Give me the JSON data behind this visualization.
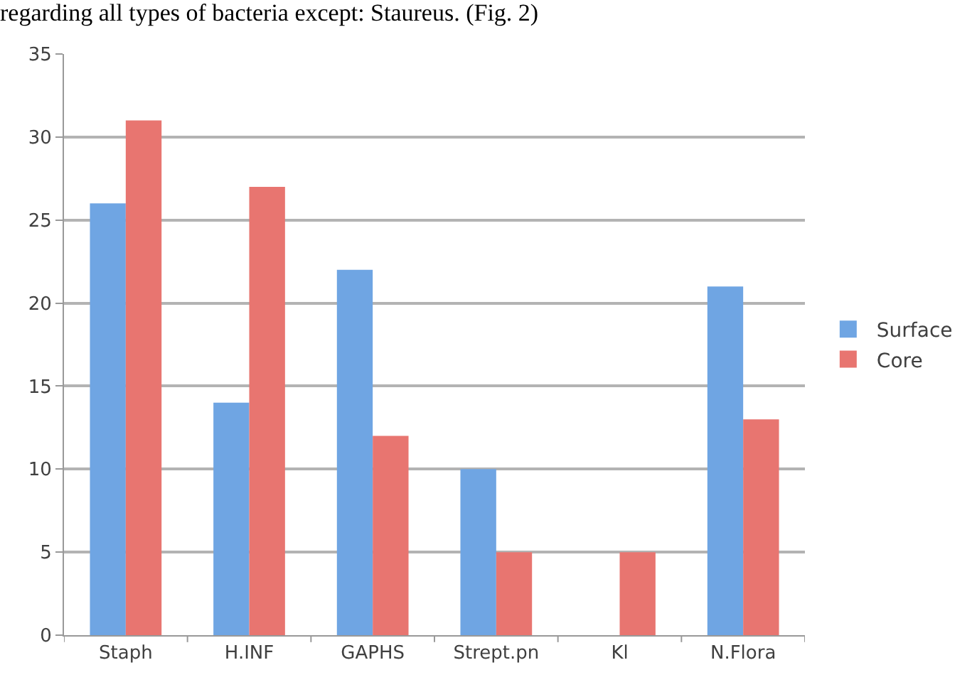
{
  "chart_data": {
    "type": "bar",
    "title": "regarding all types of bacteria except: Staureus. (Fig. 2)",
    "categories": [
      "Staph",
      "H.INF",
      "GAPHS",
      "Strept.pn",
      "Kl",
      "N.Flora"
    ],
    "series": [
      {
        "name": "Surface",
        "color": "#6fa5e3",
        "values": [
          26,
          14,
          22,
          10,
          0,
          21
        ]
      },
      {
        "name": "Core",
        "color": "#e87570",
        "values": [
          31,
          27,
          12,
          5,
          5,
          13
        ]
      }
    ],
    "ylim": [
      0,
      35
    ],
    "yticks": [
      0,
      5,
      10,
      15,
      20,
      25,
      30,
      35
    ],
    "grid": "y",
    "legend": "right"
  }
}
